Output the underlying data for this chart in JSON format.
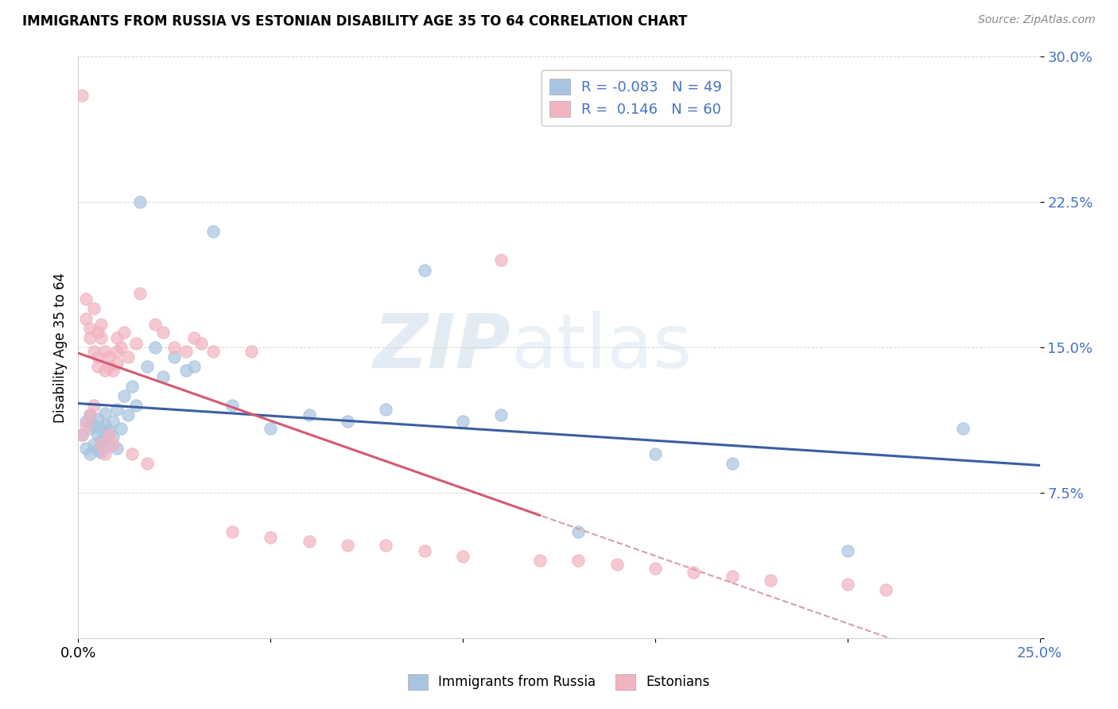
{
  "title": "IMMIGRANTS FROM RUSSIA VS ESTONIAN DISABILITY AGE 35 TO 64 CORRELATION CHART",
  "source": "Source: ZipAtlas.com",
  "ylabel": "Disability Age 35 to 64",
  "xlim": [
    0.0,
    0.25
  ],
  "ylim": [
    0.0,
    0.3
  ],
  "xticks": [
    0.0,
    0.05,
    0.1,
    0.15,
    0.2,
    0.25
  ],
  "yticks": [
    0.0,
    0.075,
    0.15,
    0.225,
    0.3
  ],
  "yticklabels": [
    "",
    "7.5%",
    "15.0%",
    "22.5%",
    "30.0%"
  ],
  "blue_color": "#A8C4E0",
  "pink_color": "#F2B3C0",
  "blue_line_color": "#3A5FA0",
  "pink_line_color": "#D45A72",
  "pink_dash_color": "#D4A0AA",
  "legend_R_blue": "-0.083",
  "legend_N_blue": "49",
  "legend_R_pink": "0.146",
  "legend_N_pink": "60",
  "watermark": "ZIPatlas",
  "blue_label": "Immigrants from Russia",
  "pink_label": "Estonians",
  "blue_scatter_x": [
    0.001,
    0.002,
    0.002,
    0.003,
    0.003,
    0.003,
    0.004,
    0.004,
    0.005,
    0.005,
    0.005,
    0.006,
    0.006,
    0.006,
    0.007,
    0.007,
    0.007,
    0.008,
    0.008,
    0.009,
    0.009,
    0.01,
    0.01,
    0.011,
    0.012,
    0.013,
    0.014,
    0.015,
    0.016,
    0.018,
    0.02,
    0.022,
    0.025,
    0.028,
    0.03,
    0.035,
    0.04,
    0.05,
    0.06,
    0.07,
    0.08,
    0.09,
    0.1,
    0.11,
    0.13,
    0.15,
    0.17,
    0.2,
    0.23
  ],
  "blue_scatter_y": [
    0.105,
    0.098,
    0.112,
    0.095,
    0.108,
    0.115,
    0.1,
    0.11,
    0.097,
    0.105,
    0.113,
    0.102,
    0.108,
    0.096,
    0.103,
    0.11,
    0.116,
    0.099,
    0.107,
    0.104,
    0.112,
    0.098,
    0.118,
    0.108,
    0.125,
    0.115,
    0.13,
    0.12,
    0.225,
    0.14,
    0.15,
    0.135,
    0.145,
    0.138,
    0.14,
    0.21,
    0.12,
    0.108,
    0.115,
    0.112,
    0.118,
    0.19,
    0.112,
    0.115,
    0.055,
    0.095,
    0.09,
    0.045,
    0.108
  ],
  "pink_scatter_x": [
    0.001,
    0.001,
    0.002,
    0.002,
    0.002,
    0.003,
    0.003,
    0.003,
    0.004,
    0.004,
    0.004,
    0.005,
    0.005,
    0.005,
    0.006,
    0.006,
    0.006,
    0.007,
    0.007,
    0.007,
    0.008,
    0.008,
    0.008,
    0.009,
    0.009,
    0.01,
    0.01,
    0.01,
    0.011,
    0.012,
    0.013,
    0.014,
    0.015,
    0.016,
    0.018,
    0.02,
    0.022,
    0.025,
    0.028,
    0.03,
    0.032,
    0.035,
    0.04,
    0.045,
    0.05,
    0.06,
    0.07,
    0.08,
    0.09,
    0.1,
    0.11,
    0.12,
    0.13,
    0.14,
    0.15,
    0.16,
    0.17,
    0.18,
    0.2,
    0.21
  ],
  "pink_scatter_y": [
    0.28,
    0.105,
    0.165,
    0.11,
    0.175,
    0.16,
    0.115,
    0.155,
    0.17,
    0.148,
    0.12,
    0.158,
    0.145,
    0.14,
    0.162,
    0.155,
    0.1,
    0.148,
    0.138,
    0.095,
    0.145,
    0.14,
    0.105,
    0.138,
    0.1,
    0.148,
    0.155,
    0.142,
    0.15,
    0.158,
    0.145,
    0.095,
    0.152,
    0.178,
    0.09,
    0.162,
    0.158,
    0.15,
    0.148,
    0.155,
    0.152,
    0.148,
    0.055,
    0.148,
    0.052,
    0.05,
    0.048,
    0.048,
    0.045,
    0.042,
    0.195,
    0.04,
    0.04,
    0.038,
    0.036,
    0.034,
    0.032,
    0.03,
    0.028,
    0.025
  ]
}
